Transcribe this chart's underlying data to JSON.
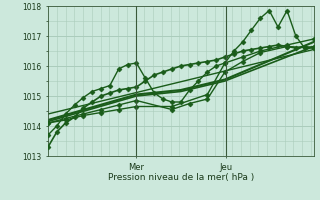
{
  "background_color": "#cce8dc",
  "plot_bg_color": "#cce8dc",
  "grid_color": "#aaccbb",
  "line_color": "#1a5c1a",
  "xlabel": "Pression niveau de la mer( hPa )",
  "ylim": [
    1013.0,
    1018.0
  ],
  "yticks": [
    1013,
    1014,
    1015,
    1016,
    1017,
    1018
  ],
  "day_labels": [
    "Mer",
    "Jeu"
  ],
  "day_positions": [
    0.33,
    0.67
  ],
  "series": [
    {
      "x": [
        0.0,
        0.033,
        0.066,
        0.1,
        0.133,
        0.166,
        0.2,
        0.233,
        0.266,
        0.3,
        0.333,
        0.366,
        0.4,
        0.433,
        0.466,
        0.5,
        0.533,
        0.566,
        0.6,
        0.633,
        0.666,
        0.7,
        0.733,
        0.766,
        0.8,
        0.833,
        0.866,
        0.9,
        0.933,
        0.966,
        1.0
      ],
      "y": [
        1013.3,
        1013.8,
        1014.1,
        1014.3,
        1014.6,
        1014.8,
        1015.0,
        1015.1,
        1015.2,
        1015.25,
        1015.3,
        1015.5,
        1015.7,
        1015.8,
        1015.9,
        1016.0,
        1016.05,
        1016.1,
        1016.15,
        1016.2,
        1016.3,
        1016.4,
        1016.5,
        1016.55,
        1016.6,
        1016.65,
        1016.7,
        1016.65,
        1016.6,
        1016.65,
        1016.6
      ],
      "marker": "D",
      "markersize": 2.5,
      "linewidth": 1.2
    },
    {
      "x": [
        0.0,
        0.033,
        0.066,
        0.1,
        0.133,
        0.166,
        0.2,
        0.233,
        0.266,
        0.3,
        0.333,
        0.366,
        0.4,
        0.433,
        0.466,
        0.5,
        0.533,
        0.566,
        0.6,
        0.633,
        0.666,
        0.7,
        0.733,
        0.766,
        0.8,
        0.833,
        0.866,
        0.9,
        0.933,
        0.966,
        1.0
      ],
      "y": [
        1013.7,
        1014.0,
        1014.4,
        1014.7,
        1014.95,
        1015.15,
        1015.25,
        1015.35,
        1015.9,
        1016.05,
        1016.1,
        1015.6,
        1015.1,
        1014.9,
        1014.8,
        1014.8,
        1015.2,
        1015.5,
        1015.8,
        1016.0,
        1016.1,
        1016.5,
        1016.8,
        1017.2,
        1017.6,
        1017.85,
        1017.3,
        1017.85,
        1017.0,
        1016.6,
        1016.65
      ],
      "marker": "D",
      "markersize": 2.5,
      "linewidth": 1.0
    },
    {
      "x": [
        0.0,
        0.066,
        0.133,
        0.2,
        0.266,
        0.333,
        0.466,
        0.533,
        0.6,
        0.666,
        0.733,
        0.8,
        0.9,
        1.0
      ],
      "y": [
        1014.1,
        1014.25,
        1014.4,
        1014.55,
        1014.7,
        1014.85,
        1014.55,
        1014.75,
        1014.9,
        1015.8,
        1016.15,
        1016.45,
        1016.65,
        1016.6
      ],
      "marker": "D",
      "markersize": 2.5,
      "linewidth": 1.0
    },
    {
      "x": [
        0.0,
        0.066,
        0.133,
        0.2,
        0.266,
        0.333,
        0.466,
        0.6,
        0.666,
        0.733,
        0.8,
        0.9,
        1.0
      ],
      "y": [
        1014.1,
        1014.2,
        1014.35,
        1014.45,
        1014.55,
        1014.65,
        1014.65,
        1015.05,
        1016.1,
        1016.3,
        1016.5,
        1016.7,
        1016.9
      ],
      "marker": "D",
      "markersize": 2.5,
      "linewidth": 1.0
    },
    {
      "x": [
        0.0,
        0.333,
        0.5,
        0.666,
        1.0
      ],
      "y": [
        1014.2,
        1015.05,
        1015.2,
        1015.55,
        1016.8
      ],
      "marker": null,
      "markersize": 0,
      "linewidth": 1.5
    },
    {
      "x": [
        0.0,
        0.333,
        0.5,
        0.666,
        1.0
      ],
      "y": [
        1014.15,
        1015.0,
        1015.15,
        1015.5,
        1016.65
      ],
      "marker": null,
      "markersize": 0,
      "linewidth": 1.2
    },
    {
      "x": [
        0.0,
        1.0
      ],
      "y": [
        1014.4,
        1016.55
      ],
      "marker": null,
      "markersize": 0,
      "linewidth": 1.0
    }
  ]
}
